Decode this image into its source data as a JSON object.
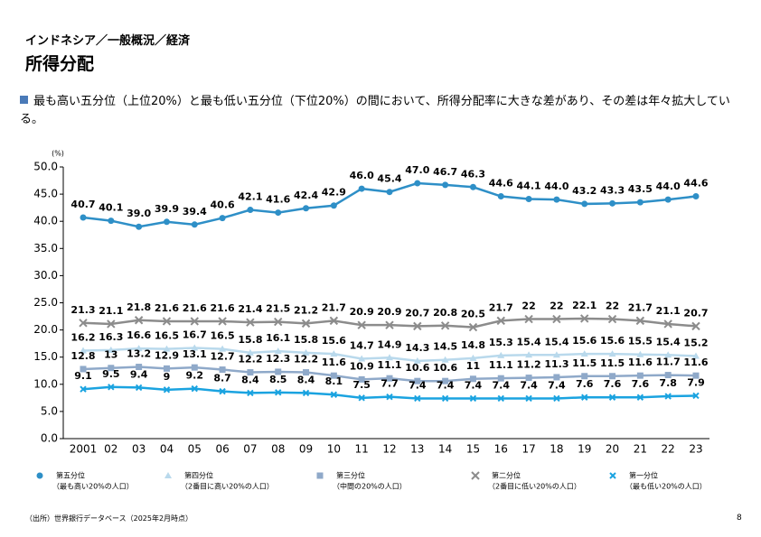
{
  "header": {
    "breadcrumb": "インドネシア／一般概況／経済",
    "title": "所得分配"
  },
  "bullet": "最も高い五分位（上位20%）と最も低い五分位（下位20%）の間において、所得分配率に大きな差があり、その差は年々拡大している。",
  "chart_data": {
    "type": "line",
    "y_unit": "(%)",
    "categories": [
      "2001",
      "02",
      "03",
      "04",
      "05",
      "06",
      "07",
      "08",
      "09",
      "10",
      "11",
      "12",
      "13",
      "14",
      "15",
      "16",
      "17",
      "18",
      "19",
      "20",
      "21",
      "22",
      "23"
    ],
    "ylim": [
      0,
      50
    ],
    "yticks": [
      {
        "value": 0,
        "label": "0.0"
      },
      {
        "value": 5,
        "label": "5.0"
      },
      {
        "value": 10,
        "label": "10.0"
      },
      {
        "value": 15,
        "label": "15.0"
      },
      {
        "value": 20,
        "label": "20.0"
      },
      {
        "value": 25,
        "label": "25.0"
      },
      {
        "value": 30,
        "label": "30.0"
      },
      {
        "value": 35,
        "label": "35.0"
      },
      {
        "value": 40,
        "label": "40.0"
      },
      {
        "value": 45,
        "label": "45.0"
      },
      {
        "value": 50,
        "label": "50.0"
      }
    ],
    "grid": false,
    "series": [
      {
        "name": "第五分位",
        "description": "（最も高い20%の人口）",
        "color": "#2e8fc7",
        "marker": "circle",
        "values": [
          40.7,
          40.1,
          39.0,
          39.9,
          39.4,
          40.6,
          42.1,
          41.6,
          42.4,
          42.9,
          46.0,
          45.4,
          47.0,
          46.7,
          46.3,
          44.6,
          44.1,
          44.0,
          43.2,
          43.3,
          43.5,
          44.0,
          44.6
        ],
        "value_labels": [
          "40.7",
          "40.1",
          "39.0",
          "39.9",
          "39.4",
          "40.6",
          "42.1",
          "41.6",
          "42.4",
          "42.9",
          "46.0",
          "45.4",
          "47.0",
          "46.7",
          "46.3",
          "44.6",
          "44.1",
          "44.0",
          "43.2",
          "43.3",
          "43.5",
          "44.0",
          "44.6"
        ]
      },
      {
        "name": "第四分位",
        "description": "（2番目に高い20%の人口）",
        "color": "#b9d9ec",
        "marker": "triangle",
        "values": [
          16.2,
          16.3,
          16.6,
          16.5,
          16.7,
          16.5,
          15.8,
          16.1,
          15.8,
          15.6,
          14.7,
          14.9,
          14.3,
          14.5,
          14.8,
          15.3,
          15.4,
          15.4,
          15.6,
          15.6,
          15.5,
          15.4,
          15.2
        ]
      },
      {
        "name": "第三分位",
        "description": "（中間の20%の人口）",
        "color": "#8fa9c9",
        "marker": "square",
        "values": [
          12.8,
          13,
          13.2,
          12.9,
          13.1,
          12.7,
          12.2,
          12.3,
          12.2,
          11.6,
          10.9,
          11.1,
          10.6,
          10.6,
          11,
          11.1,
          11.2,
          11.3,
          11.5,
          11.5,
          11.6,
          11.7,
          11.6
        ]
      },
      {
        "name": "第二分位",
        "description": "（2番目に低い20%の人口）",
        "color": "#8c8c8c",
        "marker": "x",
        "values": [
          21.3,
          21.1,
          21.8,
          21.6,
          21.6,
          21.6,
          21.4,
          21.5,
          21.2,
          21.7,
          20.9,
          20.9,
          20.7,
          20.8,
          20.5,
          21.7,
          22,
          22,
          22.1,
          22,
          21.7,
          21.1,
          20.7
        ]
      },
      {
        "name": "第一分位",
        "description": "（最も低い20%の人口）",
        "color": "#1aa3e0",
        "marker": "cross",
        "values": [
          9.1,
          9.5,
          9.4,
          9,
          9.2,
          8.7,
          8.4,
          8.5,
          8.4,
          8.1,
          7.5,
          7.7,
          7.4,
          7.4,
          7.4,
          7.4,
          7.4,
          7.4,
          7.6,
          7.6,
          7.6,
          7.8,
          7.9
        ]
      }
    ]
  },
  "footer": {
    "source": "（出所）世界銀行データベース（2025年2月時点）",
    "page": "8"
  }
}
